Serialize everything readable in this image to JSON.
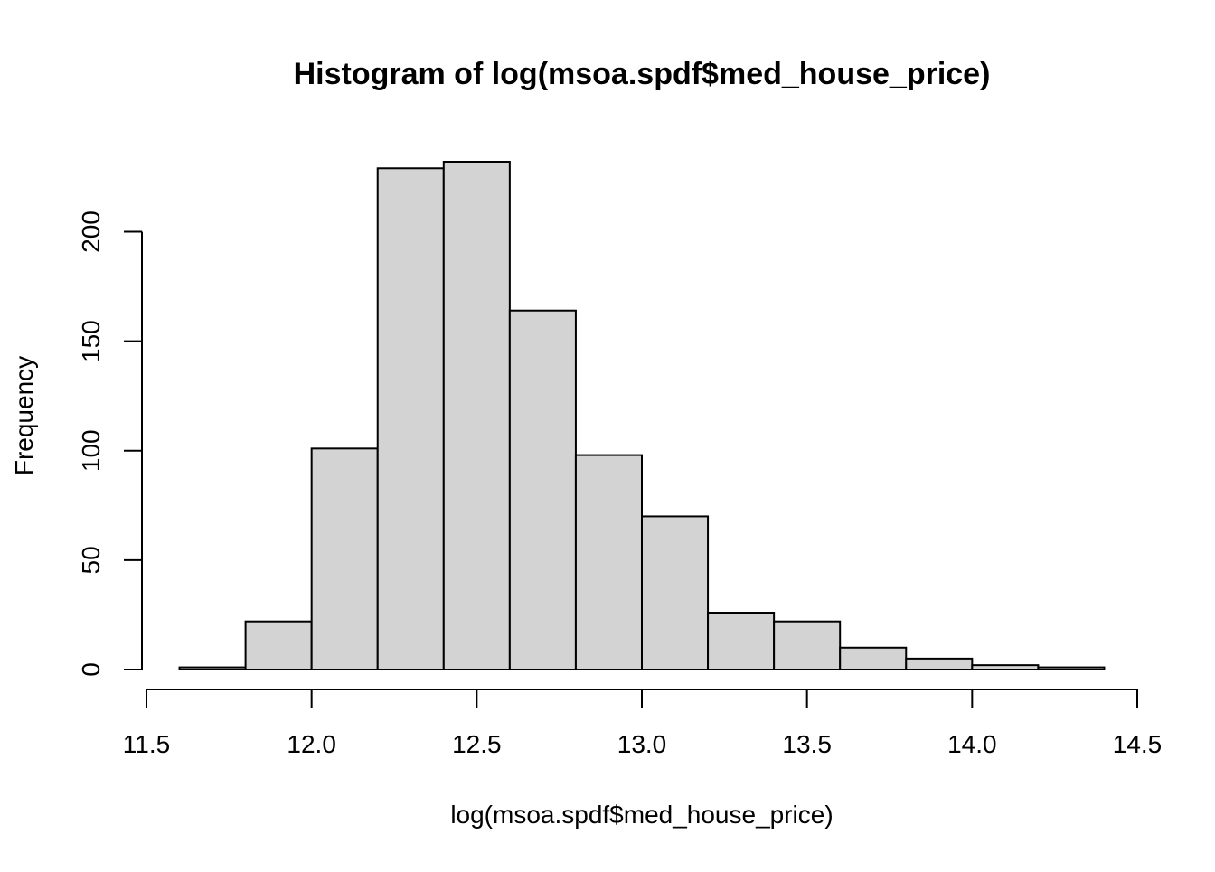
{
  "chart_data": {
    "type": "bar",
    "subtype": "histogram",
    "title": "Histogram of log(msoa.spdf$med_house_price)",
    "xlabel": "log(msoa.spdf$med_house_price)",
    "ylabel": "Frequency",
    "bin_edges": [
      11.6,
      11.8,
      12.0,
      12.2,
      12.4,
      12.6,
      12.8,
      13.0,
      13.2,
      13.4,
      13.6,
      13.8,
      14.0,
      14.2,
      14.4
    ],
    "values": [
      1,
      22,
      101,
      229,
      232,
      164,
      98,
      70,
      26,
      22,
      10,
      5,
      2,
      1
    ],
    "xlim": [
      11.5,
      14.5
    ],
    "ylim": [
      0,
      232
    ],
    "x_ticks": [
      "11.5",
      "12.0",
      "12.5",
      "13.0",
      "13.5",
      "14.0",
      "14.5"
    ],
    "y_ticks": [
      "0",
      "50",
      "100",
      "150",
      "200"
    ],
    "bar_fill": "#d3d3d3",
    "bar_stroke": "#000000",
    "grid": false,
    "legend": "none"
  }
}
